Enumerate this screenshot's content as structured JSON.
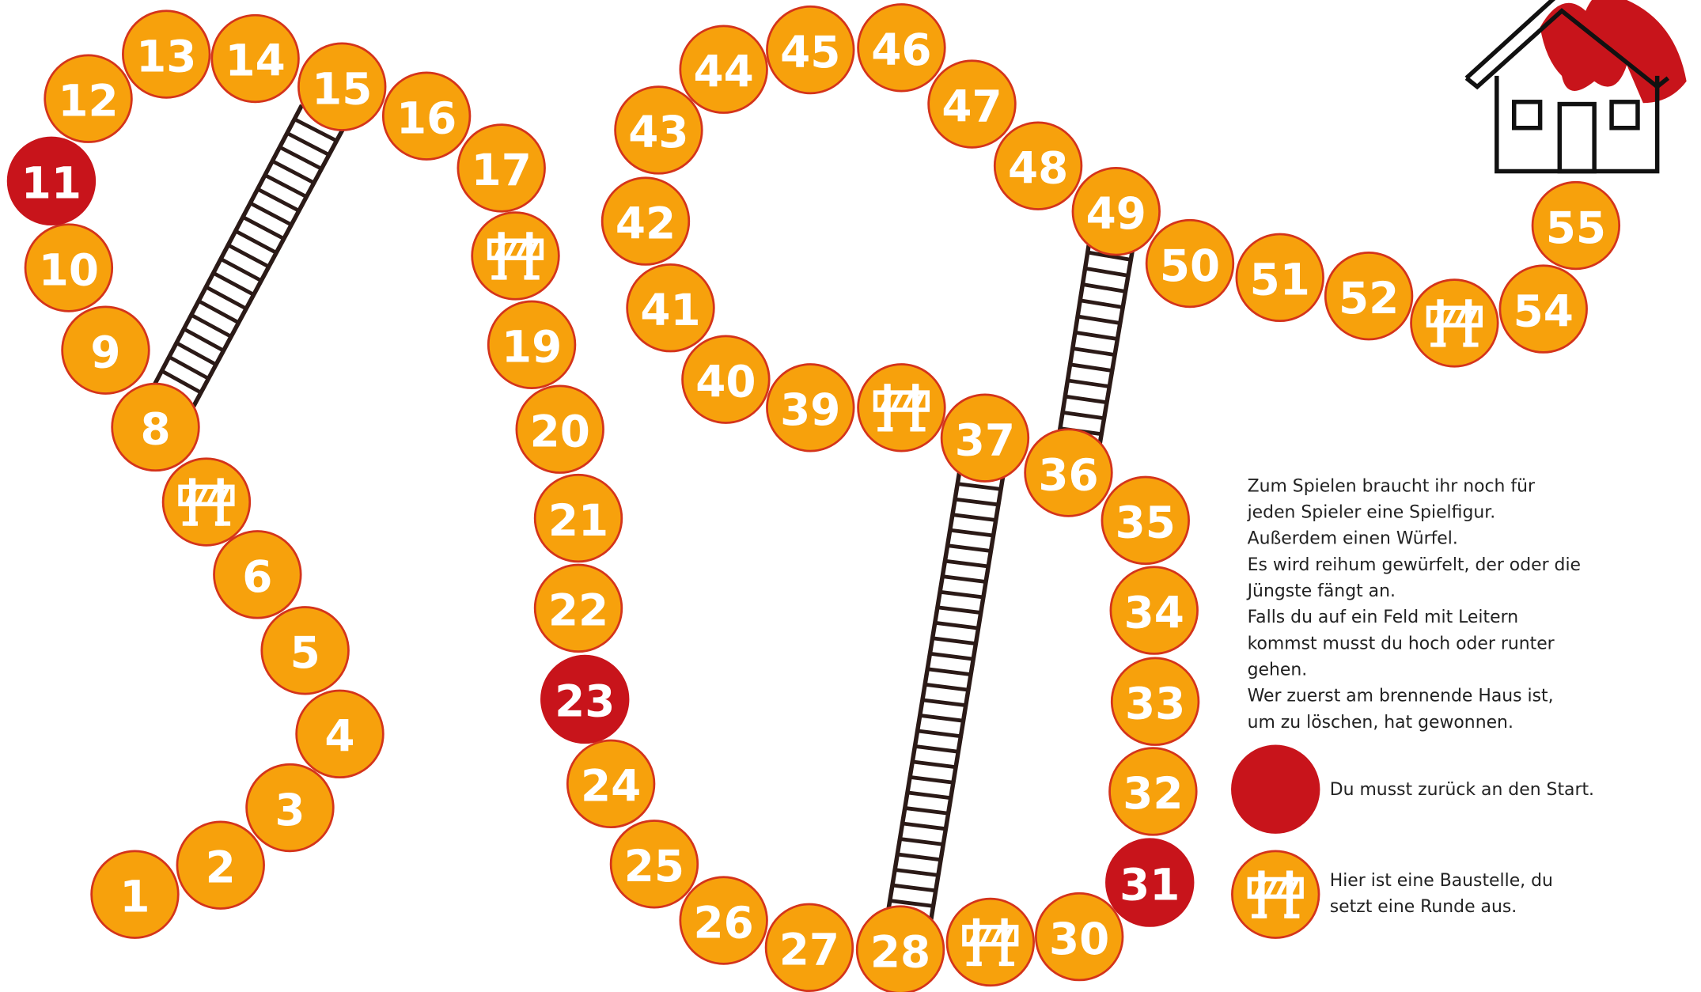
{
  "tiles": [
    {
      "label": "1",
      "kind": "normal"
    },
    {
      "label": "2",
      "kind": "normal"
    },
    {
      "label": "3",
      "kind": "normal"
    },
    {
      "label": "4",
      "kind": "normal"
    },
    {
      "label": "5",
      "kind": "normal"
    },
    {
      "label": "6",
      "kind": "normal"
    },
    {
      "kind": "barrier"
    },
    {
      "label": "8",
      "kind": "normal"
    },
    {
      "label": "9",
      "kind": "normal"
    },
    {
      "label": "10",
      "kind": "normal"
    },
    {
      "label": "11",
      "kind": "red"
    },
    {
      "label": "12",
      "kind": "normal"
    },
    {
      "label": "13",
      "kind": "normal"
    },
    {
      "label": "14",
      "kind": "normal"
    },
    {
      "label": "15",
      "kind": "normal"
    },
    {
      "label": "16",
      "kind": "normal"
    },
    {
      "label": "17",
      "kind": "normal"
    },
    {
      "kind": "barrier"
    },
    {
      "label": "19",
      "kind": "normal"
    },
    {
      "label": "20",
      "kind": "normal"
    },
    {
      "label": "21",
      "kind": "normal"
    },
    {
      "label": "22",
      "kind": "normal"
    },
    {
      "label": "23",
      "kind": "red"
    },
    {
      "label": "24",
      "kind": "normal"
    },
    {
      "label": "25",
      "kind": "normal"
    },
    {
      "label": "26",
      "kind": "normal"
    },
    {
      "label": "27",
      "kind": "normal"
    },
    {
      "label": "28",
      "kind": "normal"
    },
    {
      "kind": "barrier"
    },
    {
      "label": "30",
      "kind": "normal"
    },
    {
      "label": "31",
      "kind": "red"
    },
    {
      "label": "32",
      "kind": "normal"
    },
    {
      "label": "33",
      "kind": "normal"
    },
    {
      "label": "34",
      "kind": "normal"
    },
    {
      "label": "35",
      "kind": "normal"
    },
    {
      "label": "36",
      "kind": "normal"
    },
    {
      "label": "37",
      "kind": "normal"
    },
    {
      "kind": "barrier"
    },
    {
      "label": "39",
      "kind": "normal"
    },
    {
      "label": "40",
      "kind": "normal"
    },
    {
      "label": "41",
      "kind": "normal"
    },
    {
      "label": "42",
      "kind": "normal"
    },
    {
      "label": "43",
      "kind": "normal"
    },
    {
      "label": "44",
      "kind": "normal"
    },
    {
      "label": "45",
      "kind": "normal"
    },
    {
      "label": "46",
      "kind": "normal"
    },
    {
      "label": "47",
      "kind": "normal"
    },
    {
      "label": "48",
      "kind": "normal"
    },
    {
      "label": "49",
      "kind": "normal"
    },
    {
      "label": "50",
      "kind": "normal"
    },
    {
      "label": "51",
      "kind": "normal"
    },
    {
      "label": "52",
      "kind": "normal"
    },
    {
      "kind": "barrier"
    },
    {
      "label": "54",
      "kind": "normal"
    },
    {
      "label": "55",
      "kind": "normal"
    }
  ],
  "instructions": [
    "Zum Spielen braucht ihr noch für",
    "jeden Spieler eine Spielfigur.",
    "Außerdem einen Würfel.",
    "Es wird reihum gewürfelt, der oder die",
    "Jüngste fängt an.",
    "Falls du auf ein Feld mit Leitern",
    "kommst musst du hoch oder runter",
    "gehen.",
    "Wer zuerst am brennende Haus ist,",
    "um zu löschen, hat gewonnen."
  ],
  "legend": {
    "red": [
      "Du musst zurück an den Start."
    ],
    "barrier": [
      "Hier ist eine Baustelle, du",
      "setzt eine Runde aus."
    ]
  }
}
